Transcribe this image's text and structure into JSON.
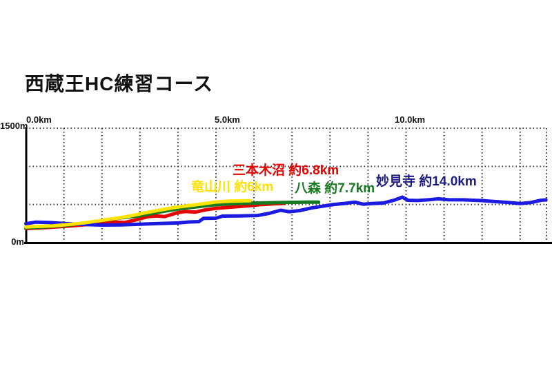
{
  "title": "西蔵王HC練習コース",
  "chart_data": {
    "type": "line",
    "title": "西蔵王HC練習コース",
    "x_unit": "km",
    "y_unit": "m",
    "x_range_km": [
      0,
      13.7
    ],
    "y_range_m": [
      0,
      1500
    ],
    "x_tick_interval_km": 1.0,
    "x_axis_labels": [
      "0.0km",
      "5.0km",
      "10.0km"
    ],
    "y_axis_labels": [
      "1500m",
      "0m"
    ],
    "y_gridlines_m": [
      500,
      1000,
      1500
    ],
    "grid": true,
    "gridline_style": "dotted",
    "legend_position": "inline-annotations",
    "series": [
      {
        "name": "竜山川",
        "label": "竜山川 約6km",
        "distance_km": 6,
        "color": "#ffe400",
        "points": [
          [
            0,
            205
          ],
          [
            0.3,
            212
          ],
          [
            0.7,
            220
          ],
          [
            1,
            232
          ],
          [
            1.3,
            246
          ],
          [
            1.6,
            264
          ],
          [
            2,
            292
          ],
          [
            2.4,
            322
          ],
          [
            2.8,
            355
          ],
          [
            3.1,
            388
          ],
          [
            3.5,
            425
          ],
          [
            3.9,
            460
          ],
          [
            4.2,
            480
          ],
          [
            4.6,
            505
          ],
          [
            5,
            533
          ],
          [
            5.4,
            544
          ],
          [
            5.7,
            548
          ],
          [
            5.9,
            550
          ]
        ]
      },
      {
        "name": "三本木沼",
        "label": "三本木沼 約6.8km",
        "distance_km": 6.8,
        "color": "#e60000",
        "points": [
          [
            0,
            185
          ],
          [
            0.5,
            196
          ],
          [
            1,
            212
          ],
          [
            1.5,
            232
          ],
          [
            2,
            252
          ],
          [
            2.35,
            270
          ],
          [
            2.6,
            264
          ],
          [
            2.9,
            300
          ],
          [
            3.2,
            340
          ],
          [
            3.45,
            350
          ],
          [
            3.65,
            342
          ],
          [
            4,
            394
          ],
          [
            4.2,
            408
          ],
          [
            4.45,
            399
          ],
          [
            4.7,
            427
          ],
          [
            5,
            450
          ],
          [
            5.4,
            465
          ],
          [
            5.8,
            481
          ],
          [
            6.2,
            499
          ],
          [
            6.5,
            508
          ],
          [
            6.8,
            515
          ]
        ]
      },
      {
        "name": "八森",
        "label": "八森 約7.7km",
        "distance_km": 7.7,
        "color": "#177a22",
        "points": [
          [
            0,
            195
          ],
          [
            0.5,
            205
          ],
          [
            1,
            224
          ],
          [
            1.5,
            254
          ],
          [
            2,
            290
          ],
          [
            2.5,
            326
          ],
          [
            3,
            352
          ],
          [
            3.4,
            390
          ],
          [
            3.8,
            426
          ],
          [
            4.1,
            448
          ],
          [
            4.5,
            470
          ],
          [
            4.8,
            488
          ],
          [
            5.1,
            501
          ],
          [
            5.5,
            511
          ],
          [
            5.9,
            517
          ],
          [
            6.3,
            522
          ],
          [
            6.7,
            526
          ],
          [
            7.1,
            529
          ],
          [
            7.45,
            532
          ],
          [
            7.7,
            530
          ]
        ]
      },
      {
        "name": "妙見寺",
        "label": "妙見寺 約14.0km",
        "distance_km": 14.0,
        "color": "#1a1ae0",
        "label_color": "#1c1c80",
        "points": [
          [
            0,
            248
          ],
          [
            0.25,
            268
          ],
          [
            0.6,
            265
          ],
          [
            1,
            252
          ],
          [
            1.5,
            239
          ],
          [
            2,
            230
          ],
          [
            2.5,
            233
          ],
          [
            3,
            242
          ],
          [
            3.5,
            250
          ],
          [
            4,
            258
          ],
          [
            4.3,
            271
          ],
          [
            4.55,
            276
          ],
          [
            4.67,
            318
          ],
          [
            5,
            321
          ],
          [
            5.17,
            348
          ],
          [
            5.6,
            351
          ],
          [
            6.1,
            356
          ],
          [
            6.4,
            384
          ],
          [
            6.7,
            425
          ],
          [
            6.92,
            406
          ],
          [
            7.2,
            420
          ],
          [
            7.5,
            454
          ],
          [
            7.8,
            477
          ],
          [
            8.1,
            501
          ],
          [
            8.4,
            515
          ],
          [
            8.65,
            531
          ],
          [
            8.87,
            504
          ],
          [
            9.1,
            513
          ],
          [
            9.4,
            520
          ],
          [
            9.7,
            558
          ],
          [
            9.9,
            596
          ],
          [
            10.05,
            556
          ],
          [
            10.3,
            552
          ],
          [
            10.6,
            562
          ],
          [
            10.85,
            575
          ],
          [
            11.1,
            563
          ],
          [
            11.5,
            561
          ],
          [
            12,
            551
          ],
          [
            12.3,
            540
          ],
          [
            12.7,
            526
          ],
          [
            13,
            512
          ],
          [
            13.3,
            528
          ],
          [
            13.55,
            556
          ],
          [
            13.68,
            560
          ]
        ]
      }
    ]
  }
}
